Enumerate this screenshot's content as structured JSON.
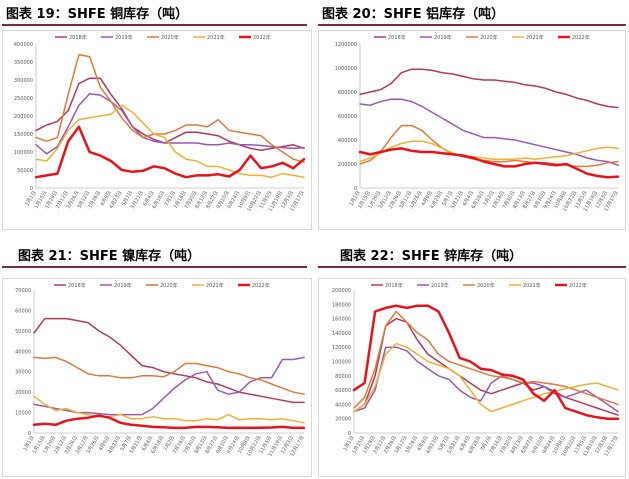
{
  "chart_data": [
    {
      "type": "line",
      "title": "图表 19：SHFE 铜库存（吨）",
      "ylim": [
        0,
        400000
      ],
      "yticks": [
        "0",
        "50000",
        "100000",
        "150000",
        "200000",
        "250000",
        "300000",
        "350000",
        "400000"
      ],
      "categories": [
        "1月1日",
        "1月15日",
        "1月29日",
        "2月12日",
        "2月26日",
        "3月12日",
        "3月26日",
        "4月9日",
        "4月23日",
        "5月7日",
        "5月21日",
        "6月4日",
        "6月18日",
        "7月2日",
        "7月16日",
        "7月30日",
        "8月13日",
        "8月27日",
        "9月10日",
        "9月24日",
        "10月8日",
        "10月22日",
        "11月5日",
        "11月19日",
        "12月3日",
        "12月17日"
      ],
      "legend": "top",
      "series": [
        {
          "name": "2018年",
          "color": "#b5385a",
          "width": 1.5,
          "values": [
            160000,
            175000,
            185000,
            215000,
            290000,
            305000,
            305000,
            260000,
            220000,
            170000,
            150000,
            135000,
            125000,
            140000,
            155000,
            155000,
            150000,
            145000,
            130000,
            120000,
            110000,
            105000,
            110000,
            115000,
            120000,
            110000
          ]
        },
        {
          "name": "2019年",
          "color": "#9b59b6",
          "width": 1.5,
          "values": [
            120000,
            95000,
            115000,
            170000,
            230000,
            262000,
            258000,
            240000,
            215000,
            170000,
            140000,
            130000,
            125000,
            125000,
            125000,
            125000,
            120000,
            120000,
            125000,
            120000,
            120000,
            118000,
            115000,
            112000,
            110000,
            112000
          ]
        },
        {
          "name": "2020年",
          "color": "#e07b39",
          "width": 1.5,
          "values": [
            140000,
            130000,
            140000,
            260000,
            370000,
            365000,
            280000,
            240000,
            195000,
            160000,
            140000,
            150000,
            150000,
            160000,
            175000,
            175000,
            170000,
            190000,
            160000,
            155000,
            150000,
            145000,
            120000,
            100000,
            80000,
            72000
          ]
        },
        {
          "name": "2021年",
          "color": "#f2b134",
          "width": 1.5,
          "values": [
            80000,
            75000,
            110000,
            160000,
            190000,
            195000,
            200000,
            205000,
            230000,
            210000,
            180000,
            150000,
            140000,
            100000,
            80000,
            75000,
            60000,
            60000,
            50000,
            40000,
            35000,
            35000,
            30000,
            40000,
            35000,
            30000
          ]
        },
        {
          "name": "2022年",
          "color": "#e8141b",
          "width": 2.5,
          "values": [
            30000,
            35000,
            40000,
            130000,
            170000,
            100000,
            90000,
            75000,
            50000,
            45000,
            48000,
            60000,
            55000,
            40000,
            30000,
            35000,
            35000,
            38000,
            32000,
            50000,
            90000,
            55000,
            60000,
            70000,
            55000,
            80000
          ]
        }
      ]
    },
    {
      "type": "line",
      "title": "图表 20：SHFE 铝库存（吨）",
      "ylim": [
        0,
        1200000
      ],
      "yticks": [
        "0",
        "200000",
        "400000",
        "600000",
        "800000",
        "1000000",
        "1200000"
      ],
      "categories": [
        "1月1日",
        "1月15日",
        "1月29日",
        "2月12日",
        "2月26日",
        "3月12日",
        "3月26日",
        "4月9日",
        "4月23日",
        "5月7日",
        "5月21日",
        "6月4日",
        "6月18日",
        "7月2日",
        "7月16日",
        "7月30日",
        "8月13日",
        "8月27日",
        "9月10日",
        "9月24日",
        "10月8日",
        "10月22日",
        "11月5日",
        "11月19日",
        "12月3日",
        "12月17日"
      ],
      "legend": "top",
      "series": [
        {
          "name": "2018年",
          "color": "#b5385a",
          "width": 1.5,
          "values": [
            780000,
            800000,
            820000,
            870000,
            960000,
            990000,
            990000,
            980000,
            960000,
            950000,
            930000,
            910000,
            900000,
            900000,
            890000,
            880000,
            860000,
            850000,
            830000,
            800000,
            780000,
            750000,
            730000,
            700000,
            680000,
            670000
          ]
        },
        {
          "name": "2019年",
          "color": "#9b59b6",
          "width": 1.5,
          "values": [
            700000,
            690000,
            720000,
            740000,
            740000,
            720000,
            680000,
            630000,
            580000,
            530000,
            480000,
            450000,
            420000,
            420000,
            410000,
            400000,
            380000,
            360000,
            340000,
            320000,
            300000,
            280000,
            250000,
            230000,
            220000,
            190000
          ]
        },
        {
          "name": "2020年",
          "color": "#e07b39",
          "width": 1.5,
          "values": [
            200000,
            230000,
            300000,
            420000,
            520000,
            520000,
            480000,
            400000,
            330000,
            280000,
            260000,
            240000,
            230000,
            220000,
            220000,
            230000,
            220000,
            210000,
            210000,
            200000,
            190000,
            180000,
            180000,
            190000,
            210000,
            220000
          ]
        },
        {
          "name": "2021年",
          "color": "#f2b134",
          "width": 1.5,
          "values": [
            220000,
            250000,
            290000,
            340000,
            370000,
            390000,
            390000,
            370000,
            330000,
            290000,
            270000,
            260000,
            250000,
            240000,
            240000,
            240000,
            250000,
            240000,
            250000,
            260000,
            270000,
            290000,
            310000,
            330000,
            340000,
            330000
          ]
        },
        {
          "name": "2022年",
          "color": "#e8141b",
          "width": 2.5,
          "values": [
            300000,
            280000,
            300000,
            320000,
            330000,
            310000,
            300000,
            300000,
            290000,
            280000,
            270000,
            250000,
            220000,
            200000,
            180000,
            180000,
            200000,
            210000,
            200000,
            190000,
            200000,
            160000,
            120000,
            100000,
            90000,
            95000
          ]
        }
      ]
    },
    {
      "type": "line",
      "title": "图表 21：SHFE 镍库存（吨）",
      "ylim": [
        0,
        70000
      ],
      "yticks": [
        "0",
        "10000",
        "20000",
        "30000",
        "40000",
        "50000",
        "60000",
        "70000"
      ],
      "categories": [
        "1月1日",
        "1月15日",
        "1月29日",
        "2月12日",
        "2月26日",
        "3月12日",
        "3月26日",
        "4月9日",
        "4月23日",
        "5月7日",
        "5月21日",
        "6月4日",
        "6月18日",
        "7月2日",
        "7月16日",
        "7月30日",
        "8月13日",
        "8月27日",
        "9月10日",
        "9月24日",
        "10月8日",
        "10月22日",
        "11月5日",
        "11月19日",
        "12月3日",
        "12月17日"
      ],
      "legend": "top",
      "series": [
        {
          "name": "2018年",
          "color": "#b5385a",
          "width": 1.5,
          "values": [
            49000,
            56000,
            56000,
            56000,
            55000,
            54000,
            50000,
            47000,
            43000,
            38000,
            33000,
            32000,
            30000,
            29000,
            28000,
            27000,
            25000,
            24000,
            22000,
            20000,
            19000,
            18000,
            17000,
            16000,
            15000,
            15000
          ]
        },
        {
          "name": "2019年",
          "color": "#9b59b6",
          "width": 1.5,
          "values": [
            14000,
            13000,
            12000,
            11000,
            10000,
            10000,
            9500,
            9000,
            9000,
            9000,
            9000,
            12000,
            17000,
            22000,
            26000,
            29000,
            30000,
            21000,
            19000,
            20000,
            25000,
            27000,
            27000,
            36000,
            36000,
            37000
          ]
        },
        {
          "name": "2020年",
          "color": "#e07b39",
          "width": 1.5,
          "values": [
            37000,
            36500,
            37000,
            35000,
            32000,
            29000,
            28000,
            28000,
            27000,
            27000,
            28000,
            28000,
            27500,
            30000,
            34000,
            34000,
            33000,
            32000,
            30000,
            29000,
            27000,
            26000,
            24000,
            22000,
            20000,
            19000
          ]
        },
        {
          "name": "2021年",
          "color": "#f2b134",
          "width": 1.5,
          "values": [
            18000,
            14000,
            11000,
            12000,
            10000,
            9000,
            8000,
            8000,
            9000,
            7000,
            7000,
            8000,
            7000,
            7000,
            6000,
            6000,
            7000,
            6500,
            9000,
            6500,
            7000,
            7000,
            6500,
            7000,
            6000,
            5000
          ]
        },
        {
          "name": "2022年",
          "color": "#e8141b",
          "width": 2.5,
          "values": [
            4000,
            4500,
            4000,
            6000,
            7000,
            7500,
            8500,
            7500,
            5000,
            4000,
            3500,
            3000,
            2800,
            2500,
            2500,
            3000,
            3000,
            2800,
            2500,
            2600,
            2500,
            2600,
            2700,
            3000,
            2500,
            2500
          ]
        }
      ]
    },
    {
      "type": "line",
      "title": "图表 22：SHFE 锌库存（吨）",
      "ylim": [
        0,
        200000
      ],
      "yticks": [
        "0",
        "20000",
        "40000",
        "60000",
        "80000",
        "100000",
        "120000",
        "140000",
        "160000",
        "180000",
        "200000"
      ],
      "categories": [
        "1月1日",
        "1月15日",
        "1月29日",
        "2月12日",
        "2月26日",
        "3月12日",
        "3月26日",
        "4月9日",
        "4月23日",
        "5月7日",
        "5月21日",
        "6月4日",
        "6月18日",
        "7月2日",
        "7月16日",
        "7月30日",
        "8月13日",
        "8月27日",
        "9月10日",
        "9月24日",
        "10月8日",
        "10月22日",
        "11月5日",
        "11月19日",
        "12月3日",
        "12月17日"
      ],
      "legend": "top",
      "series": [
        {
          "name": "2018年",
          "color": "#b5385a",
          "width": 1.5,
          "values": [
            30000,
            40000,
            80000,
            150000,
            160000,
            155000,
            130000,
            110000,
            100000,
            90000,
            80000,
            70000,
            60000,
            55000,
            60000,
            65000,
            70000,
            60000,
            65000,
            58000,
            50000,
            45000,
            40000,
            35000,
            30000,
            25000
          ]
        },
        {
          "name": "2019年",
          "color": "#9b59b6",
          "width": 1.5,
          "values": [
            30000,
            35000,
            60000,
            120000,
            120000,
            115000,
            100000,
            90000,
            80000,
            75000,
            60000,
            50000,
            45000,
            70000,
            80000,
            75000,
            70000,
            70000,
            65000,
            55000,
            50000,
            55000,
            60000,
            50000,
            40000,
            30000
          ]
        },
        {
          "name": "2020年",
          "color": "#e07b39",
          "width": 1.5,
          "values": [
            35000,
            50000,
            90000,
            150000,
            170000,
            155000,
            140000,
            130000,
            110000,
            100000,
            95000,
            90000,
            85000,
            80000,
            78000,
            75000,
            70000,
            72000,
            70000,
            68000,
            65000,
            60000,
            55000,
            50000,
            45000,
            40000
          ]
        },
        {
          "name": "2021年",
          "color": "#f2b134",
          "width": 1.5,
          "values": [
            30000,
            40000,
            65000,
            110000,
            125000,
            120000,
            110000,
            100000,
            95000,
            90000,
            80000,
            60000,
            40000,
            30000,
            35000,
            40000,
            45000,
            50000,
            55000,
            58000,
            62000,
            65000,
            68000,
            70000,
            65000,
            60000
          ]
        },
        {
          "name": "2022年",
          "color": "#e8141b",
          "width": 2.5,
          "values": [
            60000,
            70000,
            170000,
            175000,
            178000,
            175000,
            178000,
            178000,
            170000,
            140000,
            105000,
            100000,
            90000,
            88000,
            82000,
            80000,
            75000,
            55000,
            45000,
            60000,
            35000,
            30000,
            25000,
            22000,
            20000,
            20000
          ]
        }
      ]
    }
  ]
}
